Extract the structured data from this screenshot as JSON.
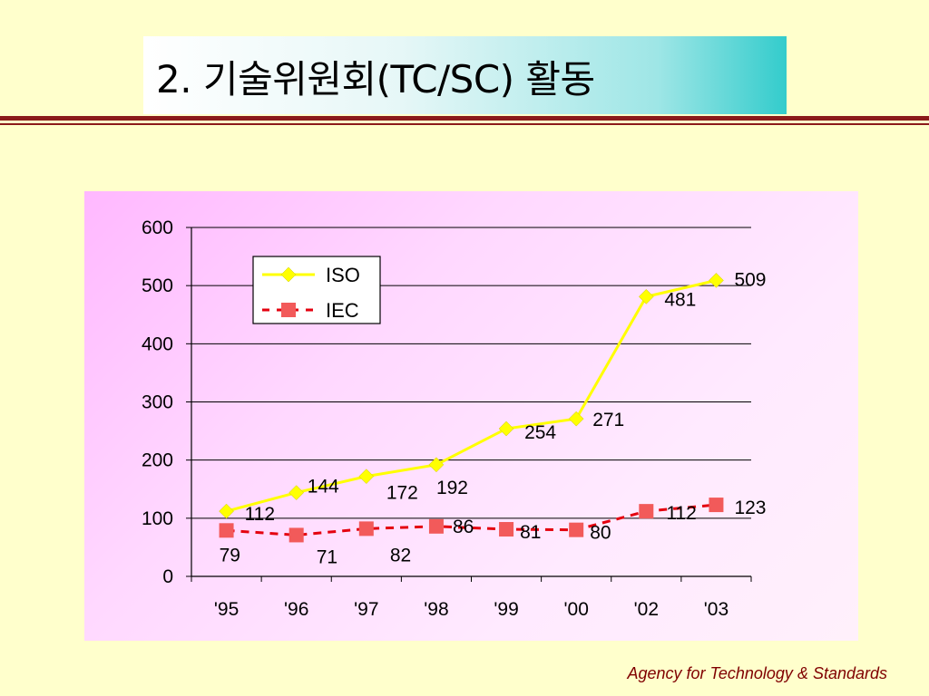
{
  "slide": {
    "title": "2. 기술위원회(TC/SC) 활동",
    "footer": "Agency for Technology & Standards"
  },
  "colors": {
    "background": "#ffffcc",
    "rule": "#8b1a1a",
    "iso": "#ffff00",
    "iec_line": "#e4000f",
    "iec_marker": "#f25a5a",
    "footer": "#800000"
  },
  "chart_data": {
    "type": "line",
    "categories": [
      "'95",
      "'96",
      "'97",
      "'98",
      "'99",
      "'00",
      "'02",
      "'03"
    ],
    "ylim": [
      0,
      600
    ],
    "yticks": [
      0,
      100,
      200,
      300,
      400,
      500,
      600
    ],
    "grid": true,
    "legend_position": "top-left",
    "series": [
      {
        "name": "ISO",
        "values": [
          112,
          144,
          172,
          192,
          254,
          271,
          481,
          509
        ],
        "marker": "diamond",
        "line": "solid",
        "color": "#ffff00"
      },
      {
        "name": "IEC",
        "values": [
          79,
          71,
          82,
          86,
          81,
          80,
          112,
          123
        ],
        "marker": "square",
        "line": "dashed",
        "color": "#e4000f"
      }
    ]
  }
}
